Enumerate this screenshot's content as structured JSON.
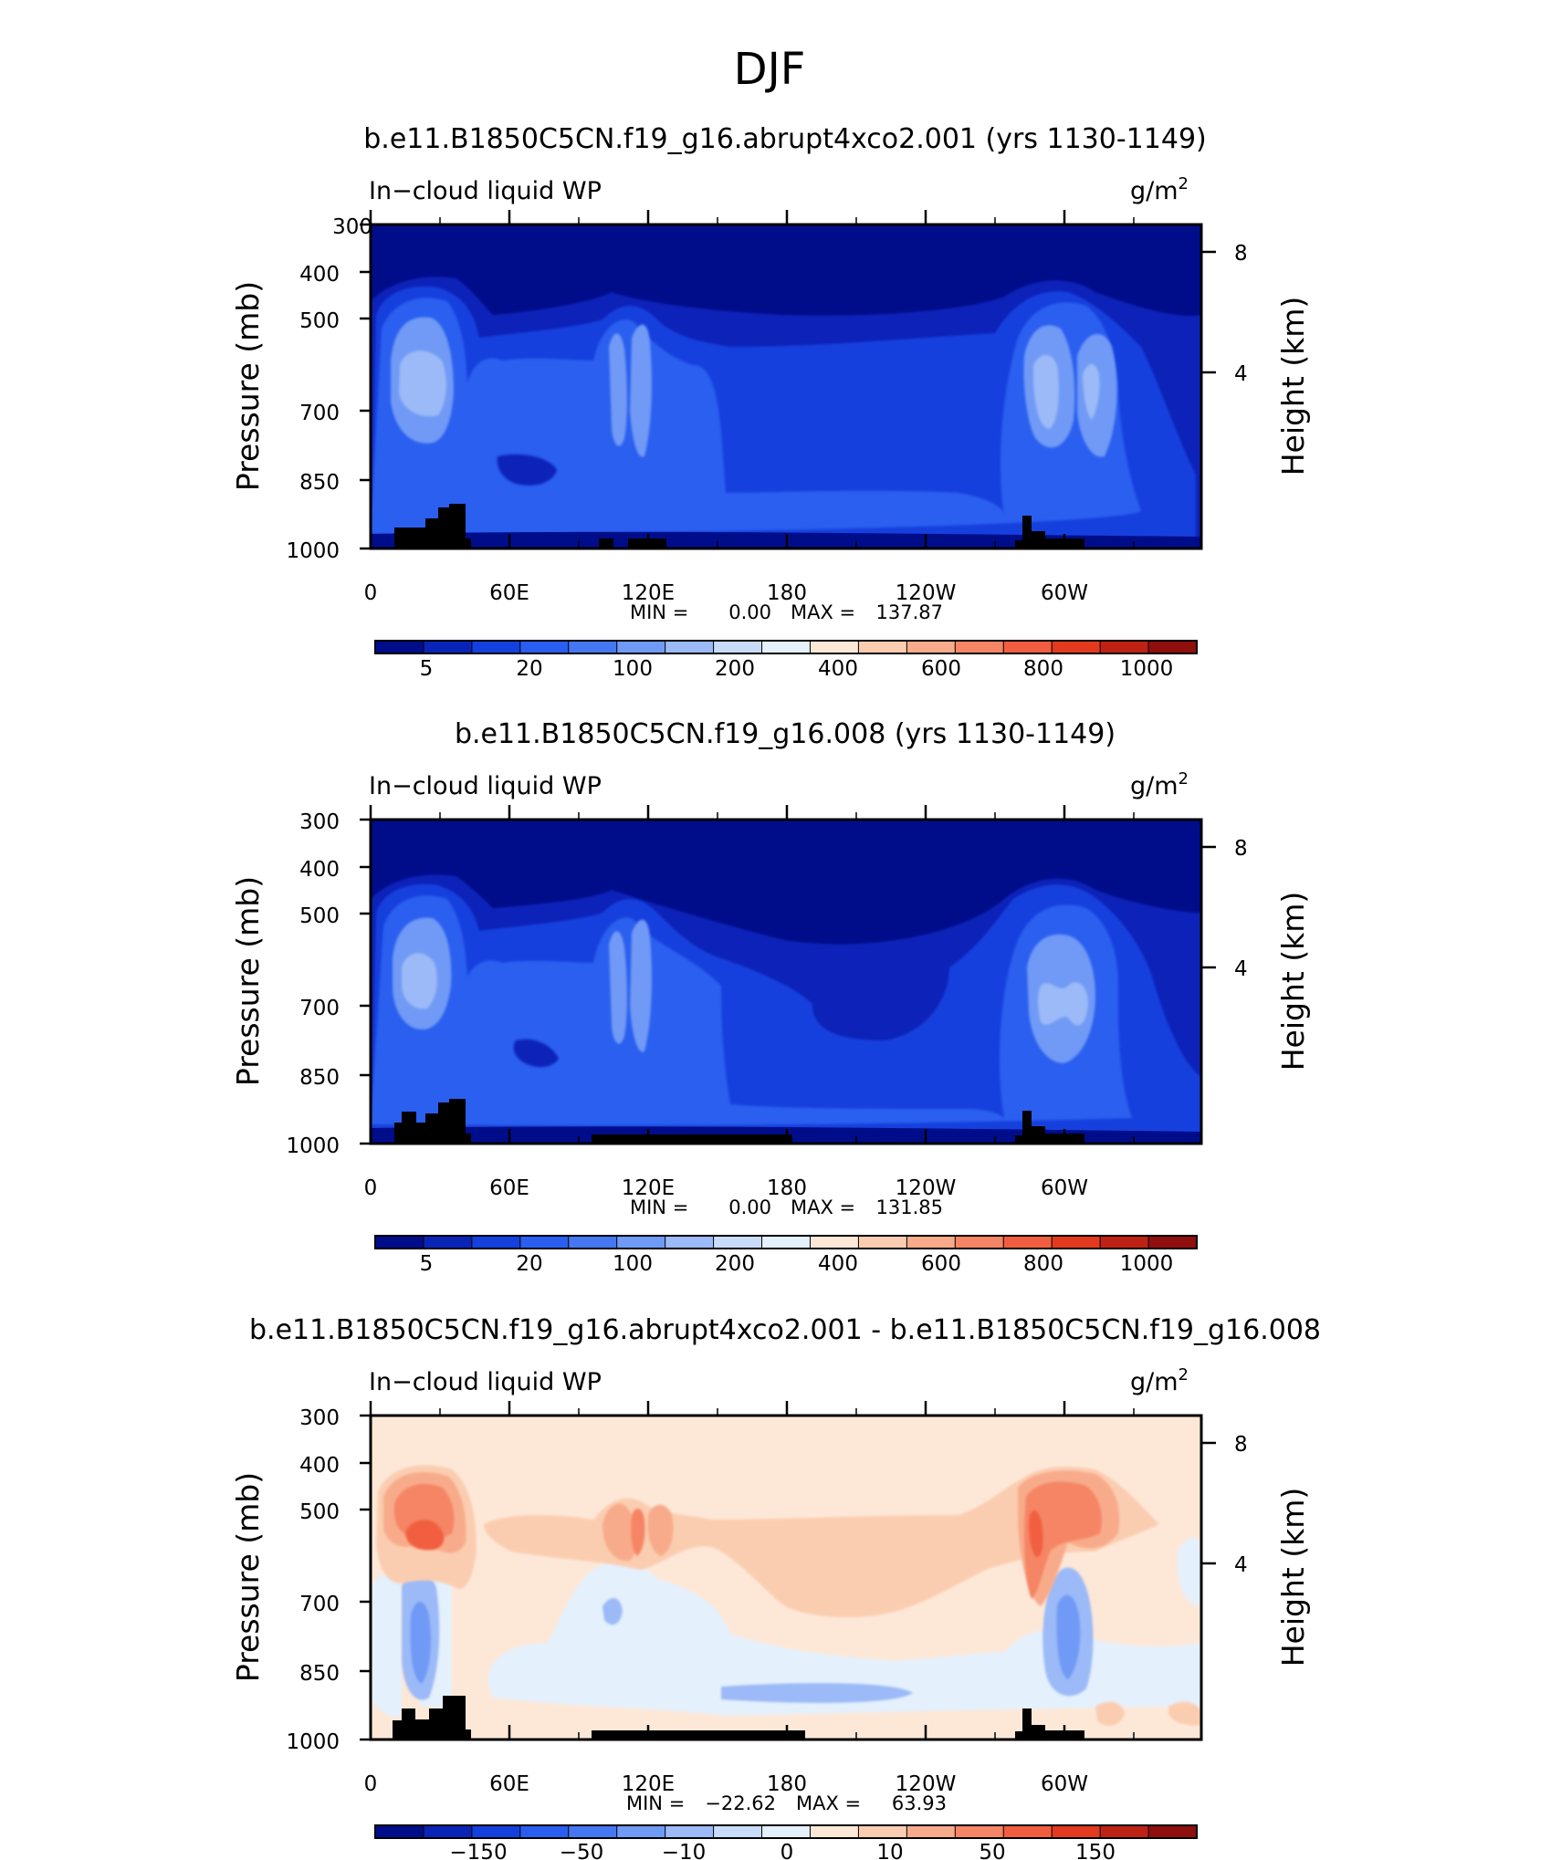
{
  "figure": {
    "title": "DJF"
  },
  "chart_data": [
    {
      "type": "heatmap",
      "title": "b.e11.B1850C5CN.f19_g16.abrupt4xco2.001 (yrs 1130-1149)",
      "variable": "In−cloud liquid WP",
      "units": "g/m",
      "units_sup": "2",
      "ylabel": "Pressure (mb)",
      "y2label": "Height (km)",
      "x_ticks": [
        "0",
        "60E",
        "120E",
        "180",
        "120W",
        "60W"
      ],
      "y_ticks": [
        "300",
        "400",
        "500",
        "700",
        "850",
        "1000"
      ],
      "y2_ticks": [
        "8",
        "4"
      ],
      "min_label": "MIN =",
      "min_value": "0.00",
      "max_label": "MAX =",
      "max_value": "137.87",
      "colorbar_labels": [
        "5",
        "20",
        "100",
        "200",
        "400",
        "600",
        "800",
        "1000"
      ],
      "colorbar_colors": [
        "#000d8a",
        "#0a24b8",
        "#1440dd",
        "#2a5ef0",
        "#4577f2",
        "#6f9af5",
        "#9bbaf7",
        "#c8dcfa",
        "#e4f0fc",
        "#fde8d8",
        "#fbcdb0",
        "#f8ab8a",
        "#f58565",
        "#f15e3f",
        "#e33a1f",
        "#be2215",
        "#8e0f0d"
      ],
      "levels": [
        {
          "name": "background",
          "color": "#000d8a"
        },
        {
          "name": "level-1",
          "color": "#0a24b8"
        },
        {
          "name": "level-2",
          "color": "#1440dd"
        },
        {
          "name": "level-3",
          "color": "#2a5ef0"
        },
        {
          "name": "level-4",
          "color": "#6f9af5"
        },
        {
          "name": "level-5",
          "color": "#9bbaf7"
        }
      ]
    },
    {
      "type": "heatmap",
      "title": "b.e11.B1850C5CN.f19_g16.008 (yrs 1130-1149)",
      "variable": "In−cloud liquid WP",
      "units": "g/m",
      "units_sup": "2",
      "ylabel": "Pressure (mb)",
      "y2label": "Height (km)",
      "x_ticks": [
        "0",
        "60E",
        "120E",
        "180",
        "120W",
        "60W"
      ],
      "y_ticks": [
        "300",
        "400",
        "500",
        "700",
        "850",
        "1000"
      ],
      "y2_ticks": [
        "8",
        "4"
      ],
      "min_label": "MIN =",
      "min_value": "0.00",
      "max_label": "MAX =",
      "max_value": "131.85",
      "colorbar_labels": [
        "5",
        "20",
        "100",
        "200",
        "400",
        "600",
        "800",
        "1000"
      ],
      "colorbar_colors": [
        "#000d8a",
        "#0a24b8",
        "#1440dd",
        "#2a5ef0",
        "#4577f2",
        "#6f9af5",
        "#9bbaf7",
        "#c8dcfa",
        "#e4f0fc",
        "#fde8d8",
        "#fbcdb0",
        "#f8ab8a",
        "#f58565",
        "#f15e3f",
        "#e33a1f",
        "#be2215",
        "#8e0f0d"
      ]
    },
    {
      "type": "heatmap",
      "title": "b.e11.B1850C5CN.f19_g16.abrupt4xco2.001 - b.e11.B1850C5CN.f19_g16.008",
      "variable": "In−cloud liquid WP",
      "units": "g/m",
      "units_sup": "2",
      "ylabel": "Pressure (mb)",
      "y2label": "Height (km)",
      "x_ticks": [
        "0",
        "60E",
        "120E",
        "180",
        "120W",
        "60W"
      ],
      "y_ticks": [
        "300",
        "400",
        "500",
        "700",
        "850",
        "1000"
      ],
      "y2_ticks": [
        "8",
        "4"
      ],
      "min_label": "MIN =",
      "min_value": "−22.62",
      "max_label": "MAX =",
      "max_value": "63.93",
      "colorbar_labels": [
        "−150",
        "−50",
        "−10",
        "0",
        "10",
        "50",
        "150"
      ],
      "colorbar_colors": [
        "#000d8a",
        "#0a24b8",
        "#1440dd",
        "#2a5ef0",
        "#4577f2",
        "#6f9af5",
        "#9bbaf7",
        "#c8dcfa",
        "#e4f0fc",
        "#fde8d8",
        "#fbcdb0",
        "#f8ab8a",
        "#f58565",
        "#f15e3f",
        "#e33a1f",
        "#be2215",
        "#8e0f0d"
      ]
    }
  ]
}
